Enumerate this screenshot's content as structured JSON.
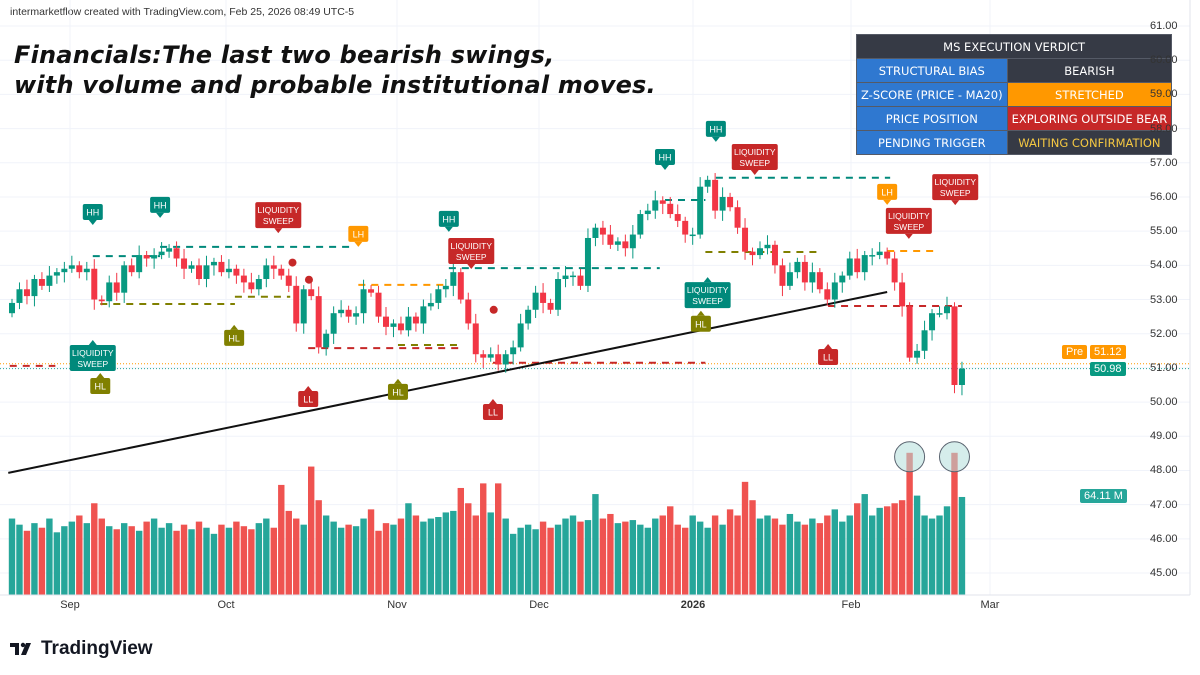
{
  "header": {
    "credit": "intermarketflow created with TradingView.com, Feb 25, 2026 08:49 UTC-5",
    "title_line1": "Financials:The last two bearish swings,",
    "title_line2": "with volume and probable institutional moves."
  },
  "verdict_table": {
    "title": "MS EXECUTION VERDICT",
    "rows": [
      {
        "label": "STRUCTURAL BIAS",
        "value": "BEARISH",
        "bg": "#363a45",
        "fg": "#ffffff"
      },
      {
        "label": "Z-SCORE (PRICE - MA20)",
        "value": "STRETCHED",
        "bg": "#ff9800",
        "fg": "#ffffff"
      },
      {
        "label": "PRICE POSITION",
        "value": "EXPLORING OUTSIDE BEAR",
        "bg": "#c62828",
        "fg": "#ffffff"
      },
      {
        "label": "PENDING TRIGGER",
        "value": "WAITING CONFIRMATION",
        "bg": "#363a45",
        "fg": "#f5c842"
      }
    ]
  },
  "price_labels": {
    "pre_tag": "Pre",
    "pre_value": "51.12",
    "last_value": "50.98",
    "volume_value": "64.11 M"
  },
  "brand": {
    "name": "TradingView"
  },
  "colors": {
    "up": "#089981",
    "down": "#f23645",
    "up_vol": "#26a69a",
    "down_vol": "#ef5350",
    "olive": "#808000",
    "orange": "#ff9800",
    "red_label": "#c62828",
    "teal_label": "#00897b"
  },
  "chart_data": {
    "type": "candlestick",
    "x_tick_labels": [
      "Sep",
      "Oct",
      "Nov",
      "Dec",
      "2026",
      "Feb",
      "Mar"
    ],
    "y_tick_labels": [
      "61.00",
      "60.00",
      "59.00",
      "58.00",
      "57.00",
      "56.00",
      "55.00",
      "54.00",
      "53.00",
      "52.00",
      "51.00",
      "50.00",
      "49.00",
      "48.00",
      "47.00",
      "46.00",
      "45.00"
    ],
    "ylim": [
      45,
      61
    ],
    "closes": [
      52.9,
      53.3,
      53.1,
      53.6,
      53.4,
      53.7,
      53.8,
      53.9,
      54.0,
      53.8,
      53.9,
      53.0,
      52.95,
      53.5,
      53.2,
      54.0,
      53.8,
      54.3,
      54.2,
      54.3,
      54.4,
      54.5,
      54.2,
      53.9,
      54.0,
      53.6,
      54.0,
      54.1,
      53.8,
      53.9,
      53.7,
      53.5,
      53.3,
      53.6,
      54.0,
      53.9,
      53.7,
      53.4,
      52.3,
      53.3,
      53.1,
      51.6,
      52.0,
      52.6,
      52.7,
      52.5,
      52.6,
      53.3,
      53.2,
      52.5,
      52.2,
      52.3,
      52.1,
      52.5,
      52.3,
      52.8,
      52.9,
      53.3,
      53.4,
      53.8,
      53.0,
      52.3,
      51.4,
      51.3,
      51.4,
      51.1,
      51.4,
      51.6,
      52.3,
      52.7,
      53.2,
      52.9,
      52.7,
      53.6,
      53.7,
      53.7,
      53.4,
      54.8,
      55.1,
      54.9,
      54.6,
      54.7,
      54.5,
      54.9,
      55.5,
      55.6,
      55.9,
      55.8,
      55.5,
      55.3,
      54.9,
      54.9,
      56.3,
      56.5,
      55.6,
      56.0,
      55.7,
      55.1,
      54.4,
      54.3,
      54.5,
      54.6,
      54.0,
      53.4,
      53.8,
      54.1,
      53.5,
      53.8,
      53.3,
      53.0,
      53.5,
      53.7,
      54.2,
      53.8,
      54.3,
      54.3,
      54.4,
      54.2,
      53.5,
      52.8,
      51.3,
      51.5,
      52.1,
      52.6,
      52.6,
      52.8,
      50.5,
      50.98
    ],
    "volume_millions": [
      50,
      46,
      42,
      47,
      44,
      50,
      41,
      45,
      48,
      52,
      47,
      60,
      50,
      45,
      43,
      47,
      45,
      42,
      48,
      50,
      44,
      47,
      42,
      46,
      43,
      48,
      44,
      40,
      46,
      44,
      48,
      45,
      43,
      47,
      50,
      44,
      72,
      55,
      50,
      46,
      84,
      62,
      52,
      48,
      44,
      46,
      45,
      50,
      56,
      42,
      47,
      46,
      50,
      60,
      52,
      48,
      50,
      51,
      54,
      55,
      70,
      60,
      52,
      73,
      54,
      73,
      50,
      40,
      44,
      46,
      43,
      48,
      44,
      46,
      50,
      52,
      48,
      49,
      66,
      50,
      53,
      47,
      48,
      49,
      46,
      44,
      50,
      52,
      58,
      46,
      44,
      52,
      48,
      44,
      52,
      46,
      56,
      52,
      74,
      62,
      50,
      52,
      50,
      46,
      53,
      48,
      46,
      50,
      47,
      52,
      56,
      48,
      52,
      60,
      66,
      52,
      57,
      58,
      60,
      62,
      93,
      65,
      52,
      50,
      52,
      58,
      93,
      64.11
    ],
    "reference_lines": [
      {
        "name": "premarket",
        "price": 51.12,
        "color": "#ff9800"
      },
      {
        "name": "last",
        "price": 50.98,
        "color": "#26a69a"
      }
    ],
    "trendline": {
      "from": {
        "bar": -0.5,
        "price": 47.93
      },
      "to": {
        "bar": 117,
        "price": 53.22
      }
    },
    "levels": [
      {
        "price": 51.06,
        "from": -0.3,
        "to": 5.8,
        "color": "#c62828"
      },
      {
        "price": 54.27,
        "from": 10.8,
        "to": 19.8,
        "color": "#00897b"
      },
      {
        "price": 54.54,
        "from": 19.8,
        "to": 45.2,
        "color": "#00897b"
      },
      {
        "price": 52.87,
        "from": 11.8,
        "to": 29.8,
        "color": "#808000"
      },
      {
        "price": 53.08,
        "from": 29.8,
        "to": 37.2,
        "color": "#808000"
      },
      {
        "price": 51.58,
        "from": 39.6,
        "to": 59.9,
        "color": "#c62828"
      },
      {
        "price": 53.43,
        "from": 46.3,
        "to": 58.4,
        "color": "#ff9800"
      },
      {
        "price": 51.67,
        "from": 51.6,
        "to": 59.9,
        "color": "#808000"
      },
      {
        "price": 53.92,
        "from": 58.4,
        "to": 86.6,
        "color": "#00897b"
      },
      {
        "price": 51.15,
        "from": 64.3,
        "to": 92.7,
        "color": "#c62828"
      },
      {
        "price": 55.91,
        "from": 87.3,
        "to": 92.7,
        "color": "#00897b"
      },
      {
        "price": 56.56,
        "from": 94.1,
        "to": 117.4,
        "color": "#00897b"
      },
      {
        "price": 54.39,
        "from": 92.7,
        "to": 108.0,
        "color": "#808000"
      },
      {
        "price": 52.81,
        "from": 109.1,
        "to": 127,
        "color": "#c62828"
      },
      {
        "price": 54.42,
        "from": 117,
        "to": 123.5,
        "color": "#ff9800"
      }
    ],
    "markers": [
      {
        "text": "HH",
        "dir": "above",
        "bar": 10.8,
        "price": 55.56,
        "color": "#00897b"
      },
      {
        "text": "HH",
        "dir": "above",
        "bar": 19.8,
        "price": 55.77,
        "color": "#00897b"
      },
      {
        "text": "LIQUIDITY|SWEEP",
        "dir": "above",
        "bar": 35.6,
        "price": 55.47,
        "color": "#c62828"
      },
      {
        "text": "LH",
        "dir": "above",
        "bar": 46.3,
        "price": 54.92,
        "color": "#ff9800"
      },
      {
        "text": "HH",
        "dir": "above",
        "bar": 58.4,
        "price": 55.36,
        "color": "#00897b"
      },
      {
        "text": "LIQUIDITY|SWEEP",
        "dir": "above",
        "bar": 61.4,
        "price": 54.42,
        "color": "#c62828"
      },
      {
        "text": "HH",
        "dir": "above",
        "bar": 87.3,
        "price": 57.17,
        "color": "#00897b"
      },
      {
        "text": "HH",
        "dir": "above",
        "bar": 94.1,
        "price": 57.99,
        "color": "#00897b"
      },
      {
        "text": "LIQUIDITY|SWEEP",
        "dir": "above",
        "bar": 99.3,
        "price": 57.17,
        "color": "#c62828"
      },
      {
        "text": "LH",
        "dir": "above",
        "bar": 117,
        "price": 56.15,
        "color": "#ff9800"
      },
      {
        "text": "LIQUIDITY|SWEEP",
        "dir": "above",
        "bar": 119.9,
        "price": 55.3,
        "color": "#c62828"
      },
      {
        "text": "LIQUIDITY|SWEEP",
        "dir": "above",
        "bar": 126.1,
        "price": 54.68,
        "color": "#c62828"
      },
      {
        "text": "LIQUIDITY|SWEEP",
        "dir": "below",
        "bar": 10.8,
        "price": 51.29,
        "color": "#00897b"
      },
      {
        "text": "HL",
        "dir": "below",
        "bar": 11.8,
        "price": 51.64,
        "color": "#808000"
      },
      {
        "text": "HL",
        "dir": "below",
        "bar": 29.7,
        "price": 51.88,
        "color": "#808000"
      },
      {
        "text": "LL",
        "dir": "below",
        "bar": 39.6,
        "price": 50.09,
        "color": "#c62828"
      },
      {
        "text": "HL",
        "dir": "below",
        "bar": 51.6,
        "price": 50.3,
        "color": "#808000"
      },
      {
        "text": "LL",
        "dir": "below",
        "bar": 64.3,
        "price": 49.71,
        "color": "#c62828"
      },
      {
        "text": "LIQUIDITY|SWEEP",
        "dir": "below",
        "bar": 93.0,
        "price": 53.13,
        "color": "#00897b"
      },
      {
        "text": "HL",
        "dir": "below",
        "bar": 92.1,
        "price": 53.05,
        "color": "#808000"
      },
      {
        "text": "LL",
        "dir": "below",
        "bar": 109.1,
        "price": 51.32,
        "color": "#c62828"
      }
    ],
    "dots": [
      {
        "bar": 37.5,
        "price": 54.08,
        "color": "#c62828"
      },
      {
        "bar": 39.7,
        "price": 53.58,
        "color": "#c62828"
      },
      {
        "bar": 64.4,
        "price": 52.7,
        "color": "#c62828"
      }
    ],
    "highlighted_volume_bars": [
      120,
      126
    ]
  }
}
